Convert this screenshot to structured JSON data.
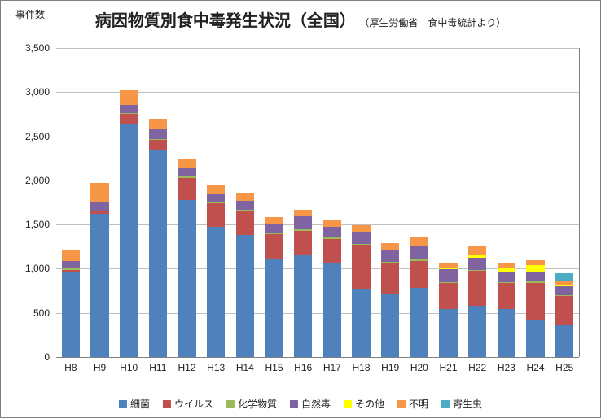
{
  "chart": {
    "type": "stacked-bar",
    "title_main": "病因物質別食中毒発生状況（全国）",
    "title_sub": "（厚生労働省　食中毒統計より）",
    "title_main_fontsize": 20,
    "title_sub_fontsize": 12,
    "yaxis_label": "事件数",
    "background_color": "#ffffff",
    "border_color": "#808080",
    "grid_color": "#bfbfbf",
    "axis_label_color": "#222222",
    "ylim": [
      0,
      3500
    ],
    "ytick_step": 500,
    "yticks": [
      "0",
      "500",
      "1,000",
      "1,500",
      "2,000",
      "2,500",
      "3,000",
      "3,500"
    ],
    "categories": [
      "H8",
      "H9",
      "H10",
      "H11",
      "H12",
      "H13",
      "H14",
      "H15",
      "H16",
      "H17",
      "H18",
      "H19",
      "H20",
      "H21",
      "H22",
      "H23",
      "H24",
      "H25"
    ],
    "bar_width": 0.62,
    "series": [
      {
        "name": "細菌",
        "color": "#4f81bd"
      },
      {
        "name": "ウイルス",
        "color": "#c0504d"
      },
      {
        "name": "化学物質",
        "color": "#9bbb59"
      },
      {
        "name": "自然毒",
        "color": "#8064a2"
      },
      {
        "name": "その他",
        "color": "#ffff00"
      },
      {
        "name": "不明",
        "color": "#f79646"
      },
      {
        "name": "寄生虫",
        "color": "#4bacc6"
      }
    ],
    "data": [
      [
        970,
        20,
        10,
        90,
        0,
        130,
        0
      ],
      [
        1620,
        30,
        10,
        100,
        0,
        210,
        0
      ],
      [
        2630,
        120,
        10,
        100,
        0,
        160,
        0
      ],
      [
        2340,
        120,
        10,
        110,
        0,
        120,
        0
      ],
      [
        1780,
        250,
        15,
        105,
        0,
        100,
        0
      ],
      [
        1470,
        270,
        10,
        100,
        0,
        90,
        0
      ],
      [
        1380,
        270,
        15,
        100,
        0,
        100,
        0
      ],
      [
        1110,
        280,
        15,
        100,
        0,
        80,
        0
      ],
      [
        1150,
        280,
        15,
        150,
        0,
        75,
        0
      ],
      [
        1060,
        280,
        15,
        120,
        0,
        75,
        0
      ],
      [
        770,
        500,
        15,
        130,
        0,
        80,
        0
      ],
      [
        720,
        350,
        10,
        140,
        0,
        70,
        0
      ],
      [
        780,
        310,
        15,
        150,
        5,
        100,
        0
      ],
      [
        540,
        300,
        10,
        150,
        5,
        50,
        0
      ],
      [
        580,
        400,
        10,
        130,
        30,
        110,
        0
      ],
      [
        540,
        300,
        10,
        120,
        30,
        60,
        0
      ],
      [
        420,
        420,
        15,
        100,
        90,
        55,
        0
      ],
      [
        360,
        330,
        10,
        100,
        20,
        40,
        90
      ]
    ],
    "legend_position": "bottom"
  }
}
